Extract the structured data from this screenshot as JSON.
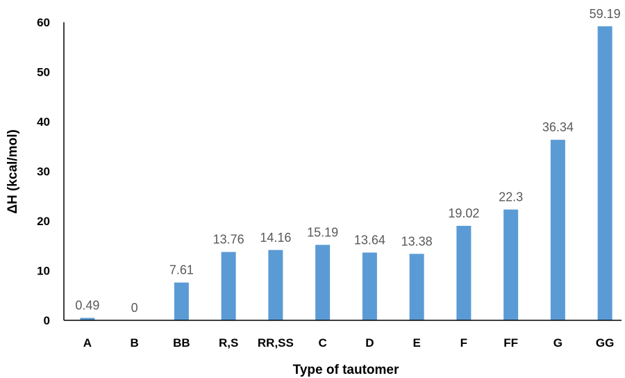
{
  "chart_data": {
    "type": "bar",
    "categories": [
      "A",
      "B",
      "BB",
      "R,S",
      "RR,SS",
      "C",
      "D",
      "E",
      "F",
      "FF",
      "G",
      "GG"
    ],
    "values": [
      0.49,
      0,
      7.61,
      13.76,
      14.16,
      15.19,
      13.64,
      13.38,
      19.02,
      22.3,
      36.34,
      59.19
    ],
    "data_labels": [
      "0.49",
      "0",
      "7.61",
      "13.76",
      "14.16",
      "15.19",
      "13.64",
      "13.38",
      "19.02",
      "22.3",
      "36.34",
      "59.19"
    ],
    "xlabel": "Type of tautomer",
    "ylabel": "ΔH (kcal/mol)",
    "ylim": [
      0,
      60
    ],
    "yticks": [
      0,
      10,
      20,
      30,
      40,
      50,
      60
    ],
    "grid": false,
    "legend": "none",
    "bar_color": "#5B9BD5"
  }
}
